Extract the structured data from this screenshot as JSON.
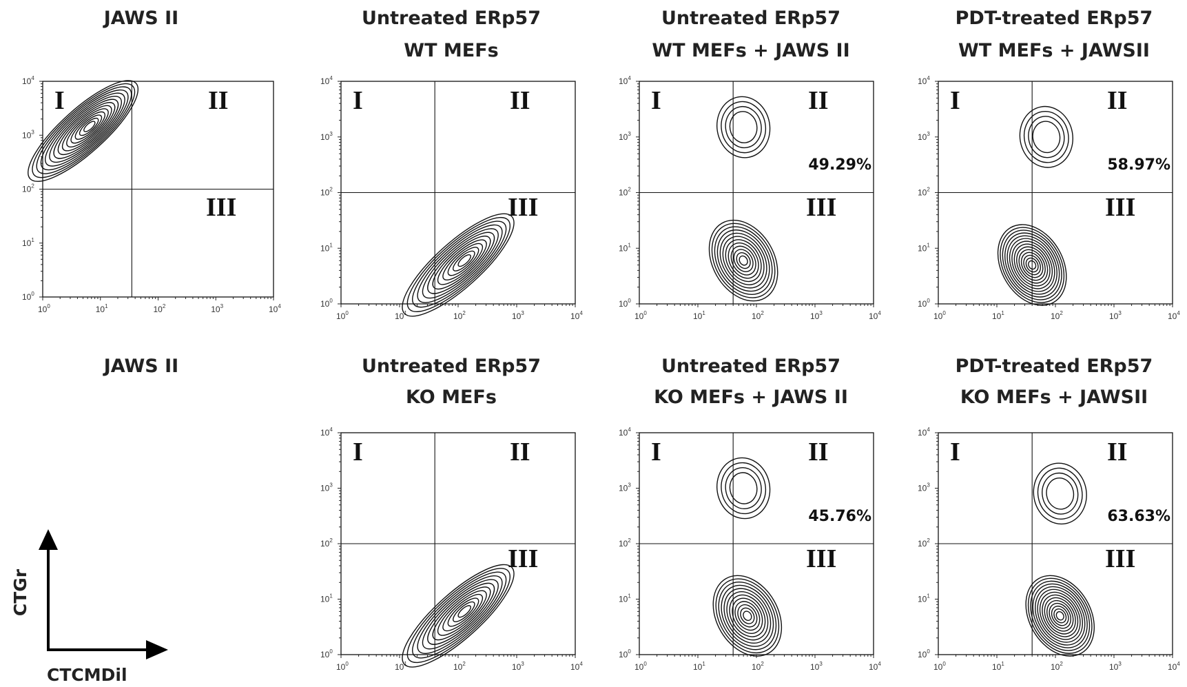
{
  "chart_data": {
    "type": "contour",
    "grid": "2x4",
    "x_axis": {
      "label": "CTCMDil",
      "scale": "log",
      "range": [
        1,
        10000
      ],
      "ticks": [
        "10",
        "10",
        "10",
        "10",
        "10"
      ],
      "tick_exponents": [
        "0",
        "1",
        "2",
        "3",
        "4"
      ]
    },
    "y_axis": {
      "label": "CTGr",
      "scale": "log",
      "range": [
        1,
        10000
      ],
      "ticks": [
        "10",
        "10",
        "10",
        "10",
        "10"
      ],
      "tick_exponents": [
        "0",
        "1",
        "2",
        "3",
        "4"
      ]
    },
    "quadrant_labels": [
      "I",
      "II",
      "III"
    ],
    "panels": [
      {
        "title_lines": [
          "JAWS II"
        ],
        "quadrant_gate": {
          "x": 35,
          "y": 100
        },
        "percent_label": null,
        "populations": [
          {
            "name": "JAWS II",
            "center": {
              "x": 5,
              "y": 1200
            },
            "spread": "elongated diagonal",
            "levels": 14
          }
        ]
      },
      {
        "title_lines": [
          "Untreated ERp57",
          "WT MEFs"
        ],
        "quadrant_gate": {
          "x": 40,
          "y": 100
        },
        "percent_label": null,
        "populations": [
          {
            "name": "MEFs",
            "center": {
              "x": 100,
              "y": 5
            },
            "spread": "elongated diagonal",
            "levels": 12
          }
        ]
      },
      {
        "title_lines": [
          "Untreated ERp57",
          "WT MEFs + JAWS II"
        ],
        "quadrant_gate": {
          "x": 40,
          "y": 100
        },
        "percent_label": "49.29%",
        "populations": [
          {
            "name": "JAWS II",
            "center": {
              "x": 60,
              "y": 1500
            },
            "levels": 4
          },
          {
            "name": "MEFs",
            "center": {
              "x": 60,
              "y": 6
            },
            "levels": 12
          }
        ]
      },
      {
        "title_lines": [
          "PDT-treated ERp57",
          "WT MEFs + JAWSII"
        ],
        "quadrant_gate": {
          "x": 40,
          "y": 100
        },
        "percent_label": "58.97%",
        "populations": [
          {
            "name": "JAWS II",
            "center": {
              "x": 70,
              "y": 1000
            },
            "levels": 4
          },
          {
            "name": "MEFs",
            "center": {
              "x": 40,
              "y": 5
            },
            "levels": 14
          }
        ]
      },
      {
        "title_lines": [
          "JAWS II"
        ],
        "quadrant_gate": null,
        "percent_label": null,
        "populations": []
      },
      {
        "title_lines": [
          "Untreated ERp57",
          "KO MEFs"
        ],
        "quadrant_gate": {
          "x": 40,
          "y": 100
        },
        "percent_label": null,
        "populations": [
          {
            "name": "MEFs",
            "center": {
              "x": 100,
              "y": 5
            },
            "spread": "elongated diagonal",
            "levels": 12
          }
        ]
      },
      {
        "title_lines": [
          "Untreated ERp57",
          "KO MEFs + JAWS II"
        ],
        "quadrant_gate": {
          "x": 40,
          "y": 100
        },
        "percent_label": "45.76%",
        "populations": [
          {
            "name": "JAWS II",
            "center": {
              "x": 60,
              "y": 1000
            },
            "levels": 4
          },
          {
            "name": "MEFs",
            "center": {
              "x": 70,
              "y": 5
            },
            "levels": 12
          }
        ]
      },
      {
        "title_lines": [
          "PDT-treated ERp57",
          "KO MEFs + JAWSII"
        ],
        "quadrant_gate": {
          "x": 40,
          "y": 100
        },
        "percent_label": "63.63%",
        "populations": [
          {
            "name": "JAWS II",
            "center": {
              "x": 120,
              "y": 800
            },
            "levels": 4
          },
          {
            "name": "MEFs",
            "center": {
              "x": 120,
              "y": 5
            },
            "levels": 14
          }
        ]
      }
    ]
  }
}
